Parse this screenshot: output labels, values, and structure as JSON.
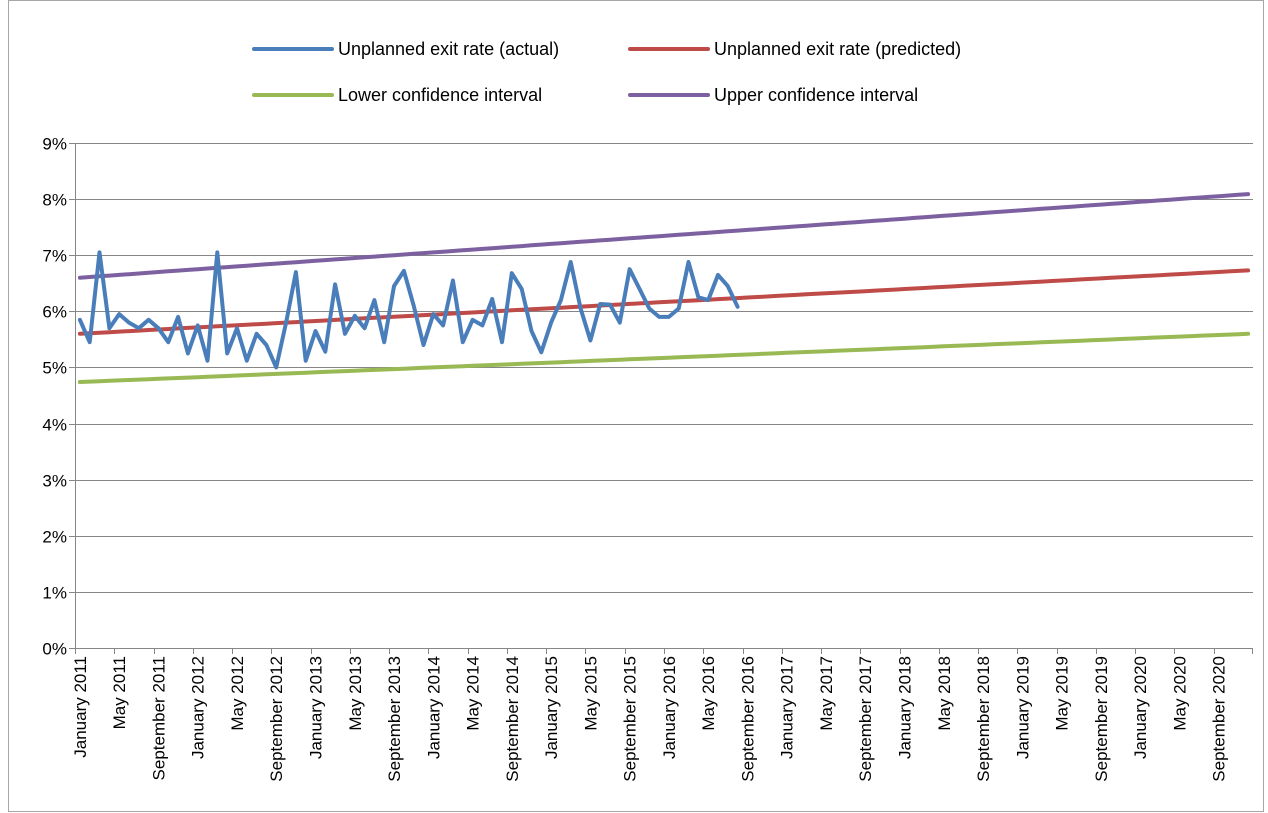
{
  "chart_data": {
    "type": "line",
    "title": "",
    "xlabel": "",
    "ylabel": "",
    "ylim": [
      0,
      0.09
    ],
    "y_ticks": [
      "0%",
      "1%",
      "2%",
      "3%",
      "4%",
      "5%",
      "6%",
      "7%",
      "8%",
      "9%"
    ],
    "x_ticks": [
      "January 2011",
      "May 2011",
      "September 2011",
      "January 2012",
      "May 2012",
      "September 2012",
      "January 2013",
      "May 2013",
      "September 2013",
      "January 2014",
      "May 2014",
      "September 2014",
      "January 2015",
      "May 2015",
      "September 2015",
      "January 2016",
      "May 2016",
      "September 2016",
      "January 2017",
      "May 2017",
      "September 2017",
      "January 2018",
      "May 2018",
      "September 2018",
      "January 2019",
      "May 2019",
      "September 2019",
      "January 2020",
      "May 2020",
      "September 2020"
    ],
    "x_range": [
      "January 2011",
      "December 2020"
    ],
    "grid": "horizontal",
    "legend_position": "top",
    "series": [
      {
        "name": "Unplanned exit rate (actual)",
        "color": "#4a7ebb",
        "values": [
          0.0585,
          0.0545,
          0.0705,
          0.057,
          0.0595,
          0.058,
          0.057,
          0.0585,
          0.057,
          0.0545,
          0.059,
          0.0525,
          0.0575,
          0.0512,
          0.0705,
          0.0525,
          0.057,
          0.0512,
          0.056,
          0.054,
          0.05,
          0.058,
          0.067,
          0.0512,
          0.0565,
          0.0528,
          0.0648,
          0.056,
          0.0592,
          0.057,
          0.062,
          0.0545,
          0.0645,
          0.0672,
          0.061,
          0.054,
          0.0595,
          0.0575,
          0.0655,
          0.0545,
          0.0585,
          0.0575,
          0.0622,
          0.0545,
          0.0668,
          0.064,
          0.0565,
          0.0527,
          0.058,
          0.062,
          0.0688,
          0.0605,
          0.0548,
          0.0613,
          0.0612,
          0.058,
          0.0675,
          0.064,
          0.0605,
          0.059,
          0.059,
          0.0605,
          0.0688,
          0.0625,
          0.062,
          0.0665,
          0.0645,
          0.0608
        ]
      },
      {
        "name": "Unplanned exit rate (predicted)",
        "color": "#be4b48",
        "start": 0.056,
        "end": 0.0673
      },
      {
        "name": "Lower confidence interval",
        "color": "#98b954",
        "start": 0.0474,
        "end": 0.056
      },
      {
        "name": "Upper confidence interval",
        "color": "#7d60a0",
        "start": 0.066,
        "end": 0.0809
      }
    ]
  }
}
